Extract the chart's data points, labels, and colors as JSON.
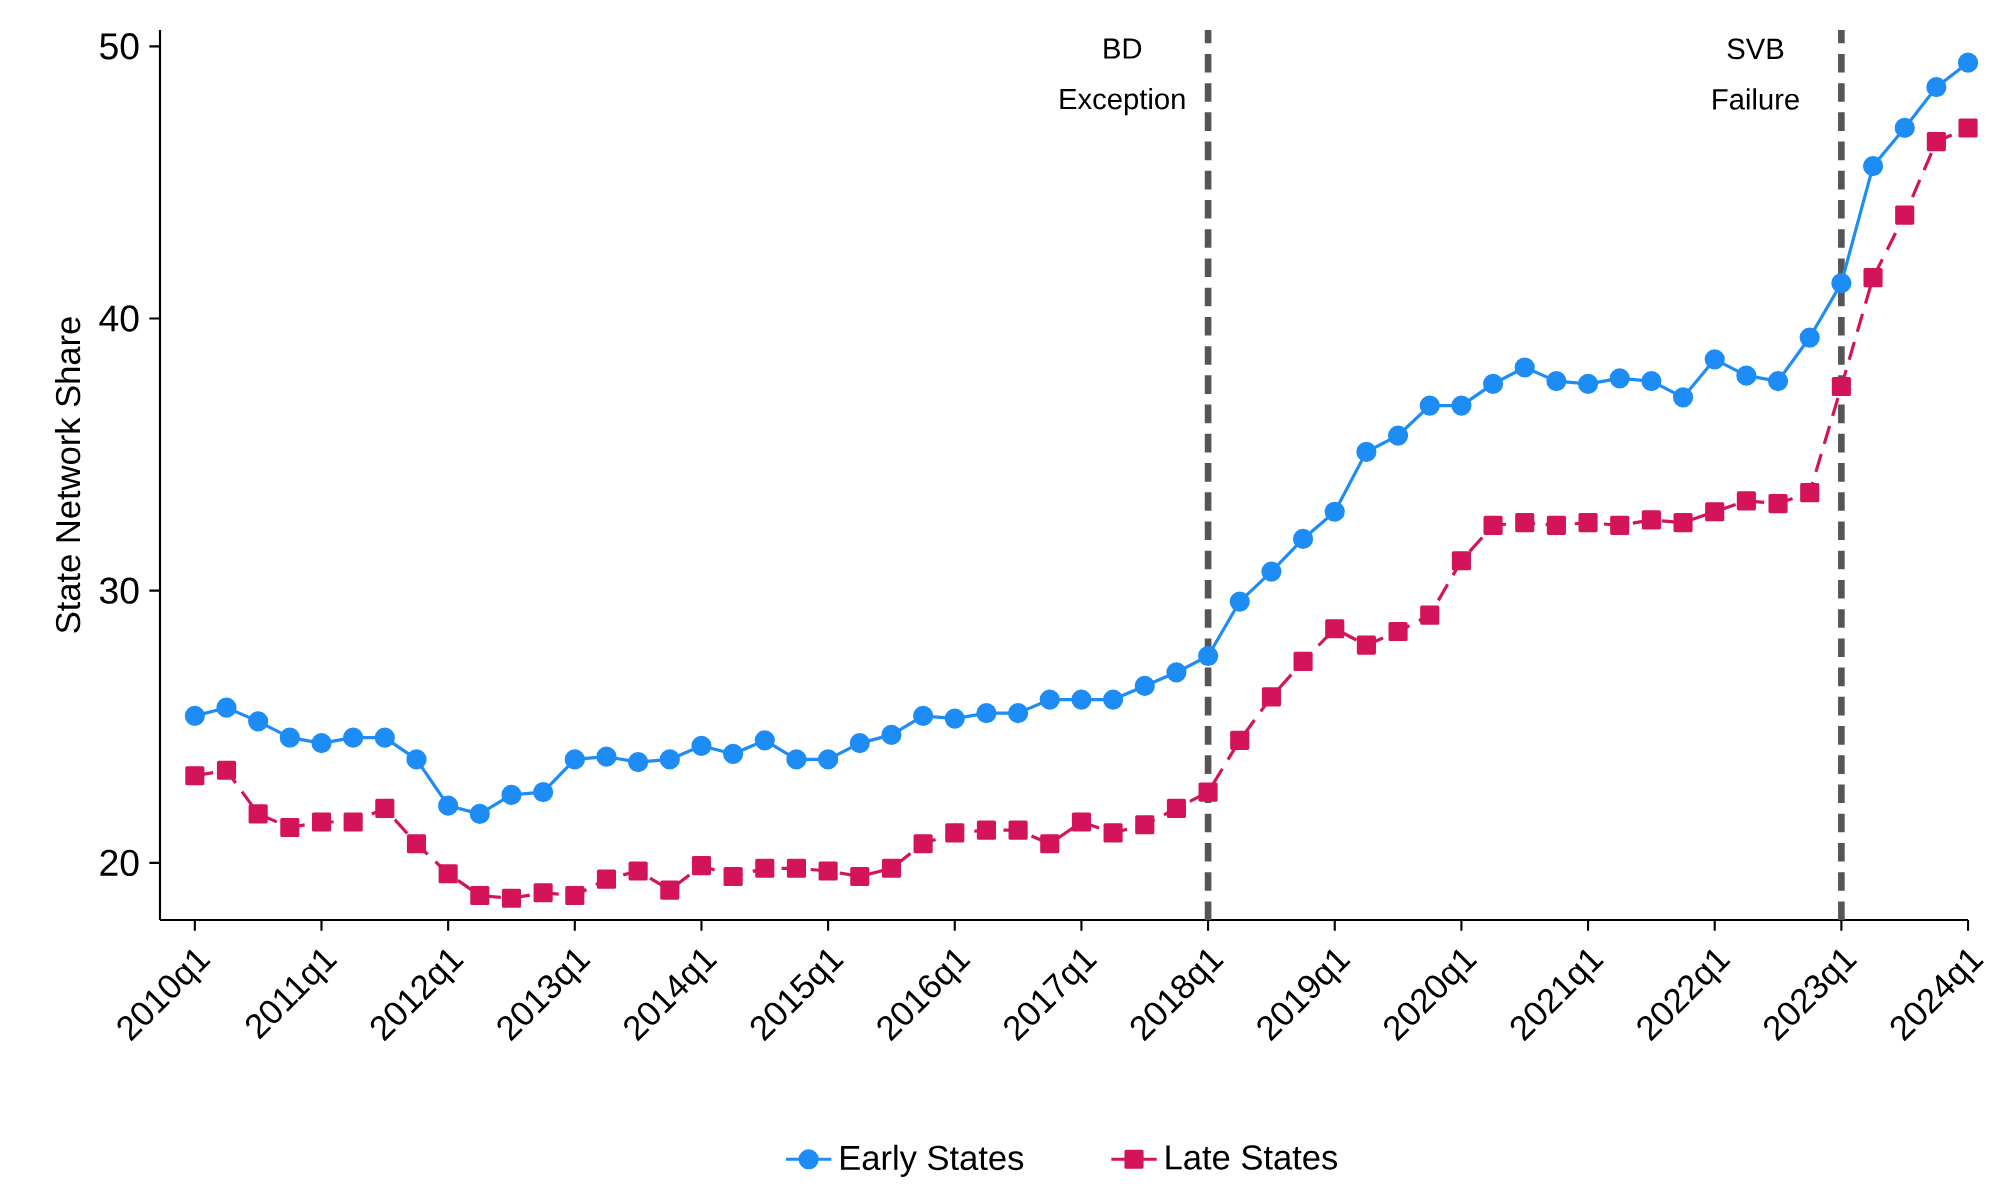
{
  "chart_data": {
    "type": "line",
    "ylabel": "State Network Share",
    "categories": [
      "2010q1",
      null,
      null,
      null,
      "2011q1",
      null,
      null,
      null,
      "2012q1",
      null,
      null,
      null,
      "2013q1",
      null,
      null,
      null,
      "2014q1",
      null,
      null,
      null,
      "2015q1",
      null,
      null,
      null,
      "2016q1",
      null,
      null,
      null,
      "2017q1",
      null,
      null,
      null,
      "2018q1",
      null,
      null,
      null,
      "2019q1",
      null,
      null,
      null,
      "2020q1",
      null,
      null,
      null,
      "2021q1",
      null,
      null,
      null,
      "2022q1",
      null,
      null,
      null,
      "2023q1",
      null,
      null,
      null,
      "2024q1"
    ],
    "series": [
      {
        "name": "Early States",
        "color": "#1e8cf5",
        "marker": "circle",
        "line_style": "solid",
        "values": [
          25.4,
          25.7,
          25.2,
          24.6,
          24.4,
          24.6,
          24.6,
          23.8,
          22.1,
          21.8,
          22.5,
          22.6,
          23.8,
          23.9,
          23.7,
          23.8,
          24.3,
          24.0,
          24.5,
          23.8,
          23.8,
          24.4,
          24.7,
          25.4,
          25.3,
          25.5,
          25.5,
          26.0,
          26.0,
          26.0,
          26.5,
          27.0,
          27.6,
          29.6,
          30.7,
          31.9,
          32.9,
          35.1,
          35.7,
          36.8,
          36.8,
          37.6,
          38.2,
          37.7,
          37.6,
          37.8,
          37.7,
          37.1,
          38.5,
          37.9,
          37.7,
          39.3,
          41.3,
          45.6,
          47.0,
          48.5,
          49.4
        ]
      },
      {
        "name": "Late States",
        "color": "#d4145a",
        "marker": "square",
        "line_style": "dashed",
        "values": [
          23.2,
          23.4,
          21.8,
          21.3,
          21.5,
          21.5,
          22.0,
          20.7,
          19.6,
          18.8,
          18.7,
          18.9,
          18.8,
          19.4,
          19.7,
          19.0,
          19.9,
          19.5,
          19.8,
          19.8,
          19.7,
          19.5,
          19.8,
          20.7,
          21.1,
          21.2,
          21.2,
          20.7,
          21.5,
          21.1,
          21.4,
          22.0,
          22.6,
          24.5,
          26.1,
          27.4,
          28.6,
          28.0,
          28.5,
          29.1,
          31.1,
          32.4,
          32.5,
          32.4,
          32.5,
          32.4,
          32.6,
          32.5,
          32.9,
          33.3,
          33.2,
          33.6,
          37.5,
          41.5,
          43.8,
          46.5,
          47.0
        ]
      }
    ],
    "ylim": [
      17.9,
      50.6
    ],
    "yticks": [
      20,
      30,
      40,
      50
    ],
    "ref_lines": [
      {
        "axis": "x",
        "value": "2018q1",
        "label": "BD Exception",
        "color": "#555555",
        "line_style": "dashed"
      },
      {
        "axis": "x",
        "value": "2023q1",
        "label": "SVB Failure",
        "color": "#555555",
        "line_style": "dashed"
      }
    ],
    "grid": false,
    "legend": "bottom"
  }
}
